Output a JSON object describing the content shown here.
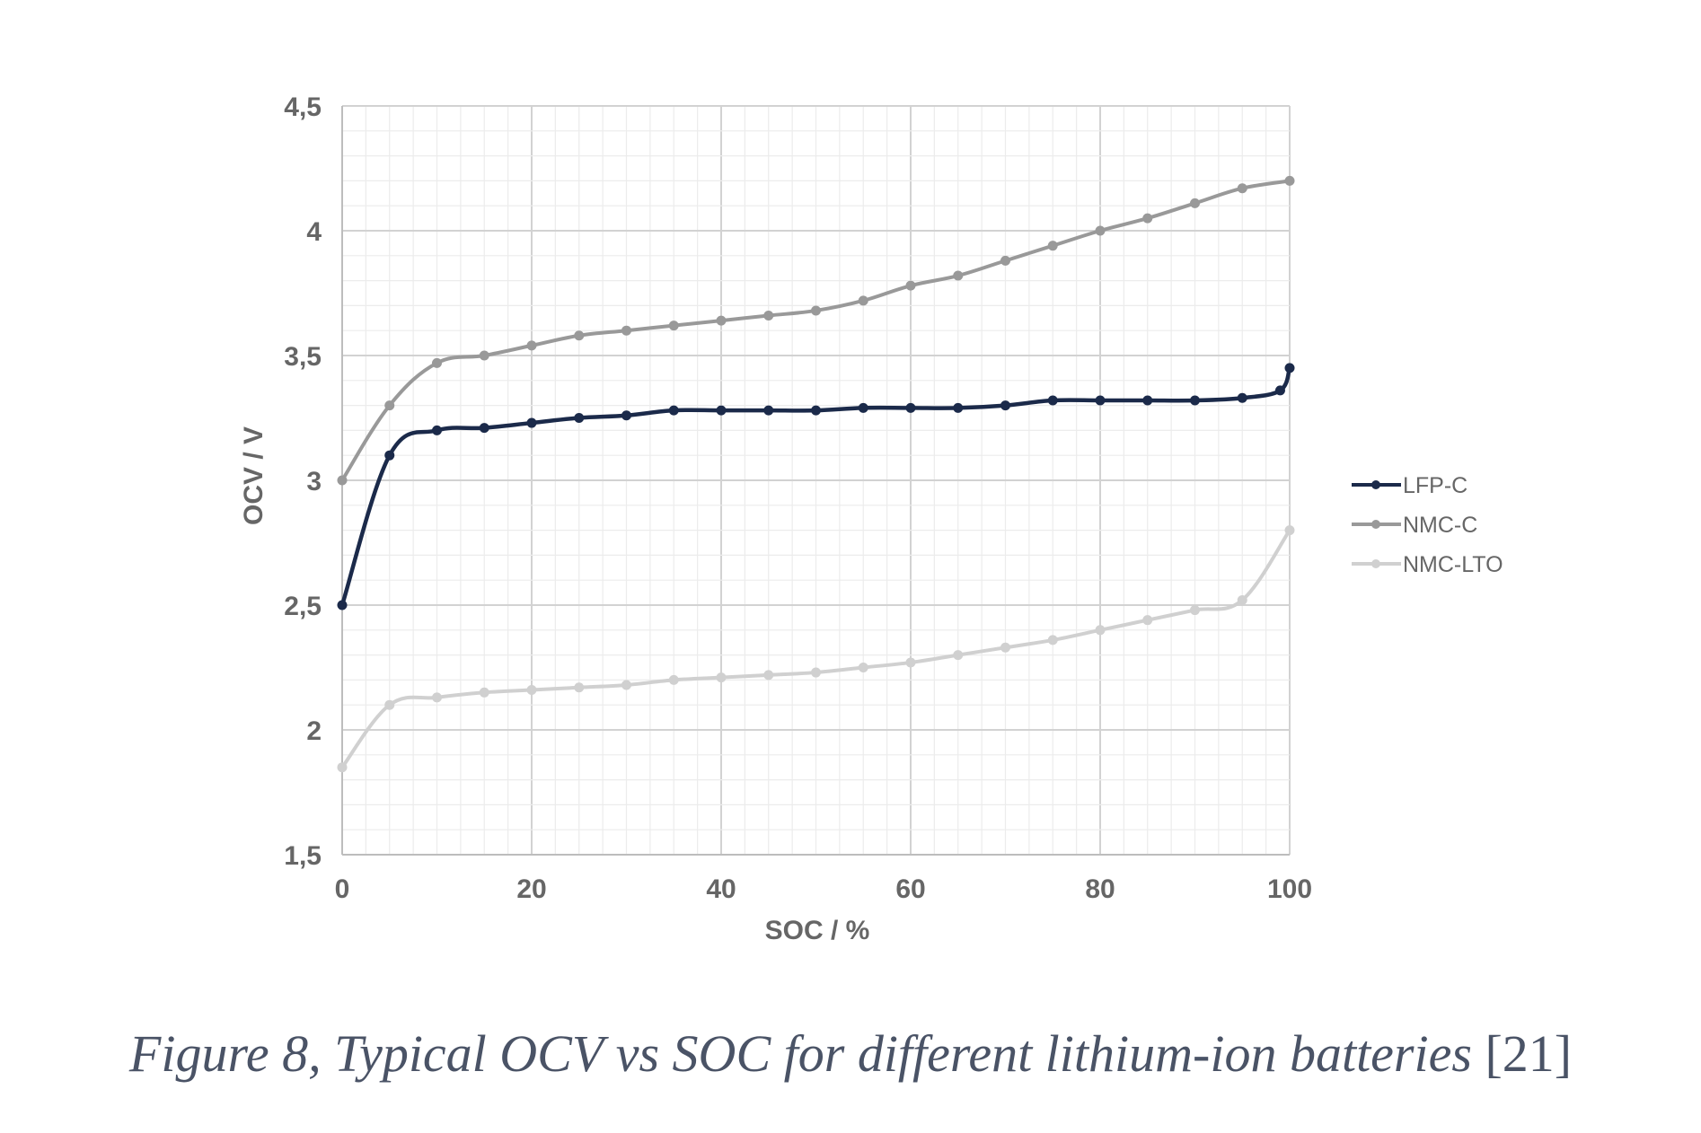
{
  "chart_data": {
    "type": "line",
    "xlabel": "SOC / %",
    "ylabel": "OCV / V",
    "xlim": [
      0,
      100
    ],
    "ylim": [
      1.5,
      4.5
    ],
    "x_ticks": [
      "0",
      "20",
      "40",
      "60",
      "80",
      "100"
    ],
    "y_ticks": [
      "1,5",
      "2",
      "2,5",
      "3",
      "3,5",
      "4",
      "4,5"
    ],
    "grid": true,
    "legend_position": "right",
    "series": [
      {
        "name": "LFP-C",
        "color": "#1b2a4a",
        "x": [
          0,
          5,
          10,
          15,
          20,
          25,
          30,
          35,
          40,
          45,
          50,
          55,
          60,
          65,
          70,
          75,
          80,
          85,
          90,
          95,
          99,
          100
        ],
        "y": [
          2.5,
          3.1,
          3.2,
          3.21,
          3.23,
          3.25,
          3.26,
          3.28,
          3.28,
          3.28,
          3.28,
          3.29,
          3.29,
          3.29,
          3.3,
          3.32,
          3.32,
          3.32,
          3.32,
          3.33,
          3.36,
          3.45
        ]
      },
      {
        "name": "NMC-C",
        "color": "#999999",
        "x": [
          0,
          5,
          10,
          15,
          20,
          25,
          30,
          35,
          40,
          45,
          50,
          55,
          60,
          65,
          70,
          75,
          80,
          85,
          90,
          95,
          100
        ],
        "y": [
          3.0,
          3.3,
          3.47,
          3.5,
          3.54,
          3.58,
          3.6,
          3.62,
          3.64,
          3.66,
          3.68,
          3.72,
          3.78,
          3.82,
          3.88,
          3.94,
          4.0,
          4.05,
          4.11,
          4.17,
          4.2
        ]
      },
      {
        "name": "NMC-LTO",
        "color": "#d0d0d0",
        "x": [
          0,
          5,
          10,
          15,
          20,
          25,
          30,
          35,
          40,
          45,
          50,
          55,
          60,
          65,
          70,
          75,
          80,
          85,
          90,
          95,
          100
        ],
        "y": [
          1.85,
          2.1,
          2.13,
          2.15,
          2.16,
          2.17,
          2.18,
          2.2,
          2.21,
          2.22,
          2.23,
          2.25,
          2.27,
          2.3,
          2.33,
          2.36,
          2.4,
          2.44,
          2.48,
          2.52,
          2.8
        ]
      }
    ]
  },
  "caption": {
    "main": "Figure 8, Typical OCV vs SOC for different lithium-ion batteries",
    "ref": "[21]"
  }
}
